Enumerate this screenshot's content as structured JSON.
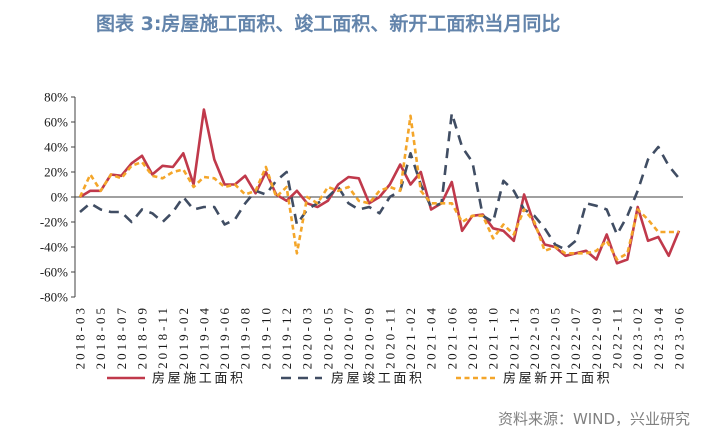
{
  "source": "资料来源：WIND，兴业研究",
  "chart_data": {
    "type": "line",
    "title": "图表 3:房屋施工面积、竣工面积、新开工面积当月同比",
    "ylim": [
      -80,
      80
    ],
    "yticks": [
      "80%",
      "60%",
      "40%",
      "20%",
      "0%",
      "-20%",
      "-40%",
      "-60%",
      "-80%"
    ],
    "grid": false,
    "legend_position": "bottom",
    "x": [
      "2018-03",
      "2018-04",
      "2018-05",
      "2018-06",
      "2018-07",
      "2018-08",
      "2018-09",
      "2018-10",
      "2018-11",
      "2018-12",
      "2019-02",
      "2019-03",
      "2019-04",
      "2019-05",
      "2019-06",
      "2019-07",
      "2019-08",
      "2019-09",
      "2019-10",
      "2019-11",
      "2019-12",
      "2020-02",
      "2020-03",
      "2020-04",
      "2020-05",
      "2020-06",
      "2020-07",
      "2020-08",
      "2020-09",
      "2020-10",
      "2020-11",
      "2020-12",
      "2021-02",
      "2021-03",
      "2021-04",
      "2021-05",
      "2021-06",
      "2021-07",
      "2021-08",
      "2021-09",
      "2021-10",
      "2021-11",
      "2021-12",
      "2022-02",
      "2022-03",
      "2022-04",
      "2022-05",
      "2022-06",
      "2022-07",
      "2022-08",
      "2022-09",
      "2022-10",
      "2022-11",
      "2022-12",
      "2023-02",
      "2023-03",
      "2023-04",
      "2023-05",
      "2023-06"
    ],
    "xticks": [
      "2018-03",
      "2018-05",
      "2018-07",
      "2018-09",
      "2018-11",
      "2019-02",
      "2019-04",
      "2019-06",
      "2019-08",
      "2019-10",
      "2019-12",
      "2020-03",
      "2020-05",
      "2020-07",
      "2020-09",
      "2020-11",
      "2021-02",
      "2021-04",
      "2021-06",
      "2021-08",
      "2021-10",
      "2021-12",
      "2022-03",
      "2022-05",
      "2022-07",
      "2022-09",
      "2022-11",
      "2023-02",
      "2023-04",
      "2023-06"
    ],
    "series": [
      {
        "name": "房屋施工面积",
        "color": "#c0394b",
        "style": "solid",
        "values": [
          0,
          5,
          5,
          18,
          17,
          27,
          33,
          18,
          25,
          24,
          35,
          10,
          70,
          30,
          10,
          10,
          17,
          3,
          20,
          2,
          -3,
          5,
          -5,
          -8,
          -3,
          10,
          16,
          15,
          -5,
          0,
          10,
          26,
          10,
          20,
          -10,
          -5,
          12,
          -27,
          -15,
          -14,
          -25,
          -27,
          -35,
          2,
          -22,
          -38,
          -40,
          -47,
          -45,
          -43,
          -50,
          -30,
          -53,
          -50,
          -8,
          -35,
          -32,
          -47,
          -27
        ]
      },
      {
        "name": "房屋竣工面积",
        "color": "#404d63",
        "style": "dashed",
        "values": [
          -12,
          -5,
          -10,
          -12,
          -12,
          -20,
          -10,
          -13,
          -20,
          -12,
          0,
          -10,
          -8,
          -8,
          -22,
          -18,
          -5,
          5,
          2,
          13,
          20,
          -22,
          -10,
          -5,
          0,
          8,
          -5,
          -10,
          -8,
          -13,
          0,
          5,
          35,
          10,
          -8,
          -5,
          67,
          40,
          28,
          -15,
          -20,
          13,
          5,
          -10,
          -15,
          -25,
          -38,
          -42,
          -35,
          -5,
          -7,
          -10,
          -30,
          -15,
          5,
          30,
          40,
          25,
          15
        ]
      },
      {
        "name": "房屋新开工面积",
        "color": "#f4a62a",
        "style": "dashed",
        "values": [
          0,
          18,
          5,
          18,
          15,
          25,
          28,
          17,
          15,
          20,
          22,
          8,
          16,
          15,
          8,
          10,
          2,
          5,
          24,
          0,
          8,
          -45,
          0,
          -5,
          8,
          5,
          8,
          -3,
          -5,
          5,
          8,
          5,
          65,
          5,
          -5,
          -5,
          -5,
          -20,
          -15,
          -15,
          -33,
          -22,
          -30,
          -10,
          -20,
          -43,
          -40,
          -45,
          -45,
          -45,
          -43,
          -35,
          -50,
          -45,
          -10,
          -18,
          -28,
          -28,
          -28
        ]
      }
    ]
  }
}
